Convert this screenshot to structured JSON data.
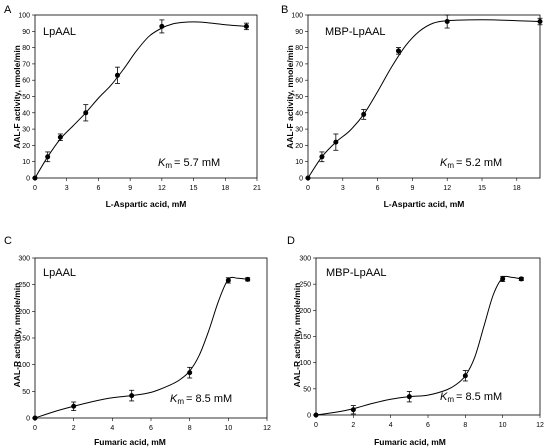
{
  "chart_data": [
    {
      "panel": "A",
      "type": "scatter",
      "title": "LpAAL",
      "xlabel": "L-Aspartic acid, mM",
      "ylabel": "AAL-F activity, nmole/min",
      "km_symbol": "K",
      "km_subscript": "m",
      "km_value": "= 5.7 mM",
      "xticks": [
        "0",
        "3",
        "6",
        "9",
        "12",
        "15",
        "18",
        "21"
      ],
      "yticks": [
        "0",
        "10",
        "20",
        "30",
        "40",
        "50",
        "60",
        "70",
        "80",
        "90",
        "100"
      ],
      "xlim": [
        0,
        21
      ],
      "ylim": [
        0,
        100
      ],
      "x": [
        0,
        1.2,
        2.4,
        4.8,
        7.8,
        12,
        20
      ],
      "y": [
        0,
        13,
        25,
        40,
        63,
        93,
        93
      ],
      "err": [
        0,
        3,
        2,
        5,
        5,
        4,
        2
      ],
      "fit_x": [
        0,
        1.2,
        2.4,
        3.6,
        4.8,
        6,
        7.2,
        8.4,
        9.6,
        10.8,
        12,
        13,
        14,
        15,
        16,
        17,
        18,
        19,
        20
      ],
      "fit_y": [
        0,
        13,
        24,
        32,
        40,
        49,
        57,
        67,
        78,
        87,
        92,
        94.5,
        95.5,
        95.8,
        95.5,
        94.8,
        94,
        93.5,
        93
      ]
    },
    {
      "panel": "B",
      "type": "scatter",
      "title": "MBP-LpAAL",
      "xlabel": "L-Aspartic acid, mM",
      "ylabel": "AAL-F activity, nmole/min",
      "km_symbol": "K",
      "km_subscript": "m",
      "km_value": "= 5.2 mM",
      "xticks": [
        "0",
        "3",
        "6",
        "9",
        "12",
        "15",
        "18"
      ],
      "yticks": [
        "0",
        "10",
        "20",
        "30",
        "40",
        "50",
        "60",
        "70",
        "80",
        "90",
        "100"
      ],
      "xlim": [
        0,
        20
      ],
      "ylim": [
        0,
        100
      ],
      "x": [
        0,
        1.2,
        2.4,
        4.8,
        7.8,
        12,
        20
      ],
      "y": [
        0,
        13,
        22,
        39,
        78,
        96,
        96
      ],
      "err": [
        0,
        3,
        5,
        3,
        2,
        4,
        2
      ],
      "fit_x": [
        0,
        1.2,
        2.4,
        3.6,
        4.8,
        6,
        7.2,
        8.4,
        9.6,
        10.8,
        12,
        14,
        16,
        18,
        20
      ],
      "fit_y": [
        0,
        13,
        22,
        29,
        39,
        53,
        68,
        81,
        90,
        95,
        96.5,
        97,
        97,
        96.5,
        96
      ]
    },
    {
      "panel": "C",
      "type": "scatter",
      "title": "LpAAL",
      "xlabel": "Fumaric acid, mM",
      "ylabel": "AAL-R activity, nmole/min",
      "km_symbol": "K",
      "km_subscript": "m",
      "km_value": "= 8.5 mM",
      "xticks": [
        "0",
        "2",
        "4",
        "6",
        "8",
        "10",
        "12"
      ],
      "yticks": [
        "0",
        "50",
        "100",
        "150",
        "200",
        "250",
        "300"
      ],
      "xlim": [
        0,
        12
      ],
      "ylim": [
        0,
        300
      ],
      "x": [
        0,
        2,
        5,
        8,
        10,
        11
      ],
      "y": [
        0,
        22,
        42,
        85,
        258,
        260
      ],
      "err": [
        0,
        8,
        10,
        10,
        5,
        3
      ],
      "fit_x": [
        0,
        1,
        2,
        3,
        4,
        5,
        6,
        7,
        7.5,
        8,
        8.5,
        9,
        9.5,
        10,
        10.5,
        11
      ],
      "fit_y": [
        0,
        12,
        22,
        31,
        38,
        42,
        48,
        62,
        72,
        88,
        118,
        165,
        220,
        260,
        262,
        260
      ]
    },
    {
      "panel": "D",
      "type": "scatter",
      "title": "MBP-LpAAL",
      "xlabel": "Fumaric acid, mM",
      "ylabel": "AAL-R activity, nmole/min",
      "km_symbol": "K",
      "km_subscript": "m",
      "km_value": "= 8.5 mM",
      "xticks": [
        "0",
        "2",
        "4",
        "6",
        "8",
        "10",
        "12"
      ],
      "yticks": [
        "0",
        "50",
        "100",
        "150",
        "200",
        "250",
        "300"
      ],
      "xlim": [
        0,
        12
      ],
      "ylim": [
        0,
        300
      ],
      "x": [
        0,
        2,
        5,
        8,
        10,
        11
      ],
      "y": [
        0,
        10,
        35,
        75,
        260,
        260
      ],
      "err": [
        0,
        8,
        10,
        10,
        5,
        3
      ],
      "fit_x": [
        0,
        1,
        2,
        3,
        4,
        5,
        6,
        7,
        7.5,
        8,
        8.5,
        9,
        9.5,
        10,
        10.5,
        11
      ],
      "fit_y": [
        0,
        5,
        12,
        22,
        30,
        35,
        38,
        48,
        58,
        75,
        110,
        170,
        230,
        262,
        263,
        260
      ]
    }
  ]
}
